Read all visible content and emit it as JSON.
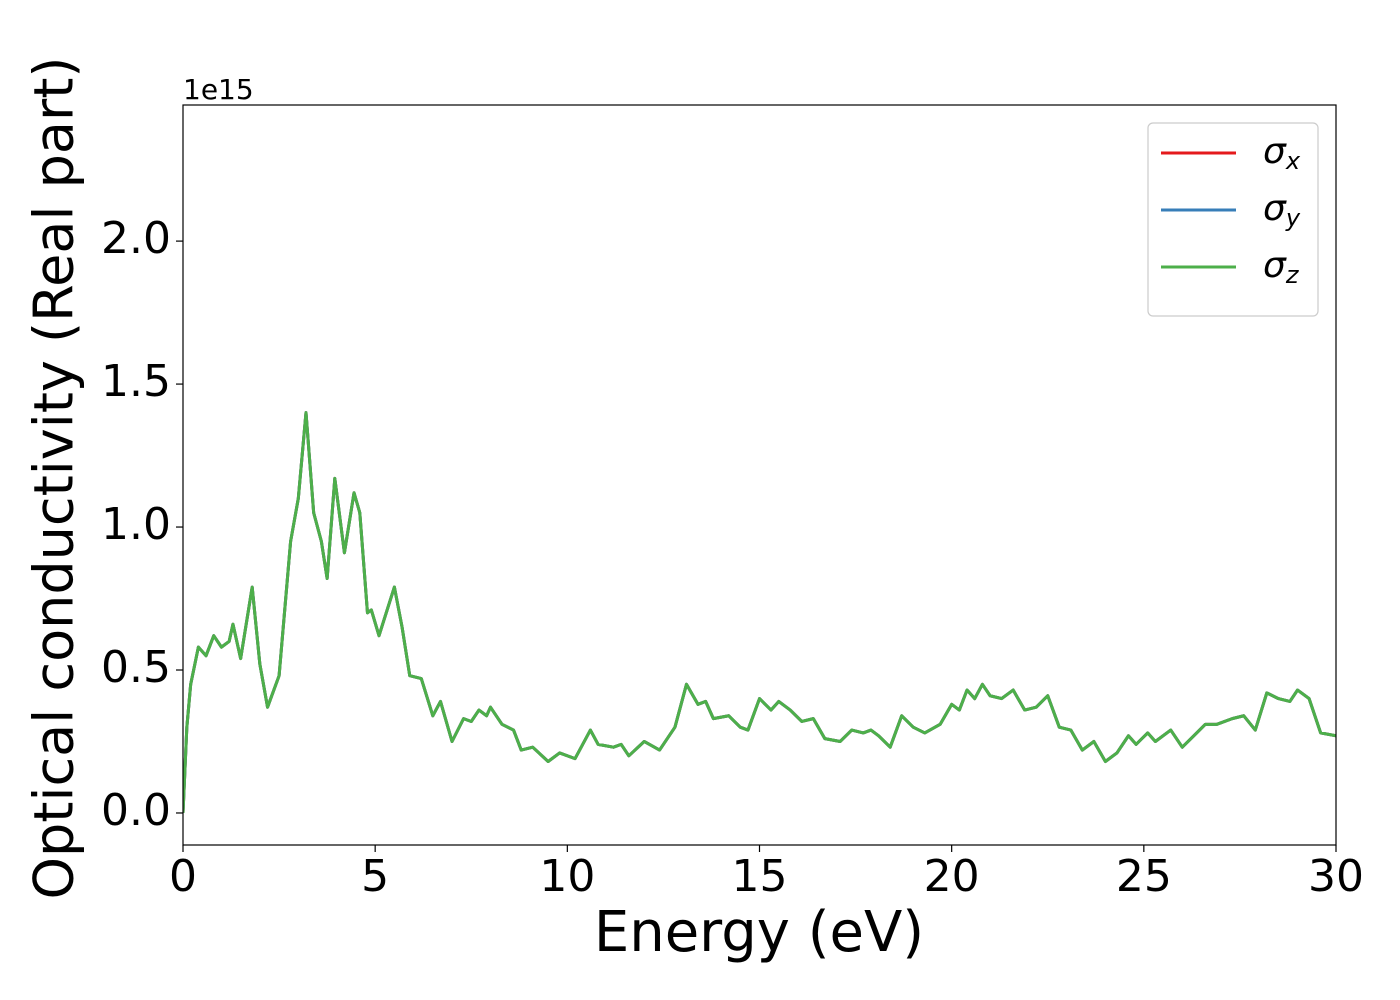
{
  "chart_data": {
    "type": "line",
    "x_label": "Energy (eV)",
    "y_label": "Optical conductivity (Real part)",
    "y_offset_label": "1e15",
    "x": [
      0,
      0.1,
      0.2,
      0.4,
      0.6,
      0.8,
      1.0,
      1.2,
      1.3,
      1.5,
      1.8,
      2.0,
      2.2,
      2.5,
      2.8,
      3.0,
      3.2,
      3.4,
      3.6,
      3.75,
      3.95,
      4.2,
      4.45,
      4.6,
      4.8,
      4.9,
      5.1,
      5.5,
      5.7,
      5.9,
      6.2,
      6.5,
      6.7,
      7.0,
      7.3,
      7.5,
      7.7,
      7.9,
      8.0,
      8.3,
      8.6,
      8.8,
      9.1,
      9.5,
      9.8,
      10.2,
      10.6,
      10.8,
      11.2,
      11.4,
      11.6,
      12.0,
      12.4,
      12.8,
      13.1,
      13.4,
      13.6,
      13.8,
      14.2,
      14.5,
      14.7,
      15.0,
      15.3,
      15.5,
      15.8,
      16.1,
      16.4,
      16.7,
      17.1,
      17.4,
      17.7,
      17.9,
      18.1,
      18.4,
      18.7,
      19.0,
      19.3,
      19.7,
      20.0,
      20.2,
      20.4,
      20.6,
      20.8,
      21.0,
      21.3,
      21.6,
      21.9,
      22.2,
      22.5,
      22.8,
      23.1,
      23.4,
      23.7,
      24.0,
      24.3,
      24.6,
      24.8,
      25.1,
      25.3,
      25.7,
      26.0,
      26.3,
      26.6,
      26.9,
      27.3,
      27.6,
      27.9,
      28.2,
      28.5,
      28.8,
      29.0,
      29.3,
      29.6,
      30.0
    ],
    "series": [
      {
        "name": "σx",
        "color": "#e41a1c",
        "values": [
          0,
          0.3,
          0.45,
          0.58,
          0.55,
          0.62,
          0.58,
          0.6,
          0.66,
          0.54,
          0.79,
          0.52,
          0.37,
          0.48,
          0.95,
          1.1,
          1.4,
          1.05,
          0.95,
          0.82,
          1.17,
          0.91,
          1.12,
          1.05,
          0.7,
          0.71,
          0.62,
          0.79,
          0.65,
          0.48,
          0.47,
          0.34,
          0.39,
          0.25,
          0.33,
          0.32,
          0.36,
          0.34,
          0.37,
          0.31,
          0.29,
          0.22,
          0.23,
          0.18,
          0.21,
          0.19,
          0.29,
          0.24,
          0.23,
          0.24,
          0.2,
          0.25,
          0.22,
          0.3,
          0.45,
          0.38,
          0.39,
          0.33,
          0.34,
          0.3,
          0.29,
          0.4,
          0.36,
          0.39,
          0.36,
          0.32,
          0.33,
          0.26,
          0.25,
          0.29,
          0.28,
          0.29,
          0.27,
          0.23,
          0.34,
          0.3,
          0.28,
          0.31,
          0.38,
          0.36,
          0.43,
          0.4,
          0.45,
          0.41,
          0.4,
          0.43,
          0.36,
          0.37,
          0.41,
          0.3,
          0.29,
          0.22,
          0.25,
          0.18,
          0.21,
          0.27,
          0.24,
          0.28,
          0.25,
          0.29,
          0.23,
          0.27,
          0.31,
          0.31,
          0.33,
          0.34,
          0.29,
          0.42,
          0.4,
          0.39,
          0.43,
          0.4,
          0.28,
          0.27
        ]
      },
      {
        "name": "σy",
        "color": "#377eb8",
        "values": [
          0,
          0.3,
          0.45,
          0.58,
          0.55,
          0.62,
          0.58,
          0.6,
          0.66,
          0.54,
          0.79,
          0.52,
          0.37,
          0.48,
          0.95,
          1.1,
          1.4,
          1.05,
          0.95,
          0.82,
          1.17,
          0.91,
          1.12,
          1.05,
          0.7,
          0.71,
          0.62,
          0.79,
          0.65,
          0.48,
          0.47,
          0.34,
          0.39,
          0.25,
          0.33,
          0.32,
          0.36,
          0.34,
          0.37,
          0.31,
          0.29,
          0.22,
          0.23,
          0.18,
          0.21,
          0.19,
          0.29,
          0.24,
          0.23,
          0.24,
          0.2,
          0.25,
          0.22,
          0.3,
          0.45,
          0.38,
          0.39,
          0.33,
          0.34,
          0.3,
          0.29,
          0.4,
          0.36,
          0.39,
          0.36,
          0.32,
          0.33,
          0.26,
          0.25,
          0.29,
          0.28,
          0.29,
          0.27,
          0.23,
          0.34,
          0.3,
          0.28,
          0.31,
          0.38,
          0.36,
          0.43,
          0.4,
          0.45,
          0.41,
          0.4,
          0.43,
          0.36,
          0.37,
          0.41,
          0.3,
          0.29,
          0.22,
          0.25,
          0.18,
          0.21,
          0.27,
          0.24,
          0.28,
          0.25,
          0.29,
          0.23,
          0.27,
          0.31,
          0.31,
          0.33,
          0.34,
          0.29,
          0.42,
          0.4,
          0.39,
          0.43,
          0.4,
          0.28,
          0.27
        ]
      },
      {
        "name": "σz",
        "color": "#4daf4a",
        "values": [
          0,
          0.3,
          0.45,
          0.58,
          0.55,
          0.62,
          0.58,
          0.6,
          0.66,
          0.54,
          0.79,
          0.52,
          0.37,
          0.48,
          0.95,
          1.1,
          1.4,
          1.05,
          0.95,
          0.82,
          1.17,
          0.91,
          1.12,
          1.05,
          0.7,
          0.71,
          0.62,
          0.79,
          0.65,
          0.48,
          0.47,
          0.34,
          0.39,
          0.25,
          0.33,
          0.32,
          0.36,
          0.34,
          0.37,
          0.31,
          0.29,
          0.22,
          0.23,
          0.18,
          0.21,
          0.19,
          0.29,
          0.24,
          0.23,
          0.24,
          0.2,
          0.25,
          0.22,
          0.3,
          0.45,
          0.38,
          0.39,
          0.33,
          0.34,
          0.3,
          0.29,
          0.4,
          0.36,
          0.39,
          0.36,
          0.32,
          0.33,
          0.26,
          0.25,
          0.29,
          0.28,
          0.29,
          0.27,
          0.23,
          0.34,
          0.3,
          0.28,
          0.31,
          0.38,
          0.36,
          0.43,
          0.4,
          0.45,
          0.41,
          0.4,
          0.43,
          0.36,
          0.37,
          0.41,
          0.3,
          0.29,
          0.22,
          0.25,
          0.18,
          0.21,
          0.27,
          0.24,
          0.28,
          0.25,
          0.29,
          0.23,
          0.27,
          0.31,
          0.31,
          0.33,
          0.34,
          0.29,
          0.42,
          0.4,
          0.39,
          0.43,
          0.4,
          0.28,
          0.27
        ]
      }
    ],
    "xlim": [
      0,
      30
    ],
    "xticks": [
      0,
      5,
      10,
      15,
      20,
      25,
      30
    ],
    "ylim": [
      -0.112,
      2.476
    ],
    "yticks": [
      {
        "value": 0,
        "label": "0.0"
      },
      0.5,
      {
        "value": 1,
        "label": "1.0"
      },
      1.5,
      {
        "value": 2,
        "label": "2.0"
      }
    ],
    "grid": false,
    "legend": "upper right"
  }
}
